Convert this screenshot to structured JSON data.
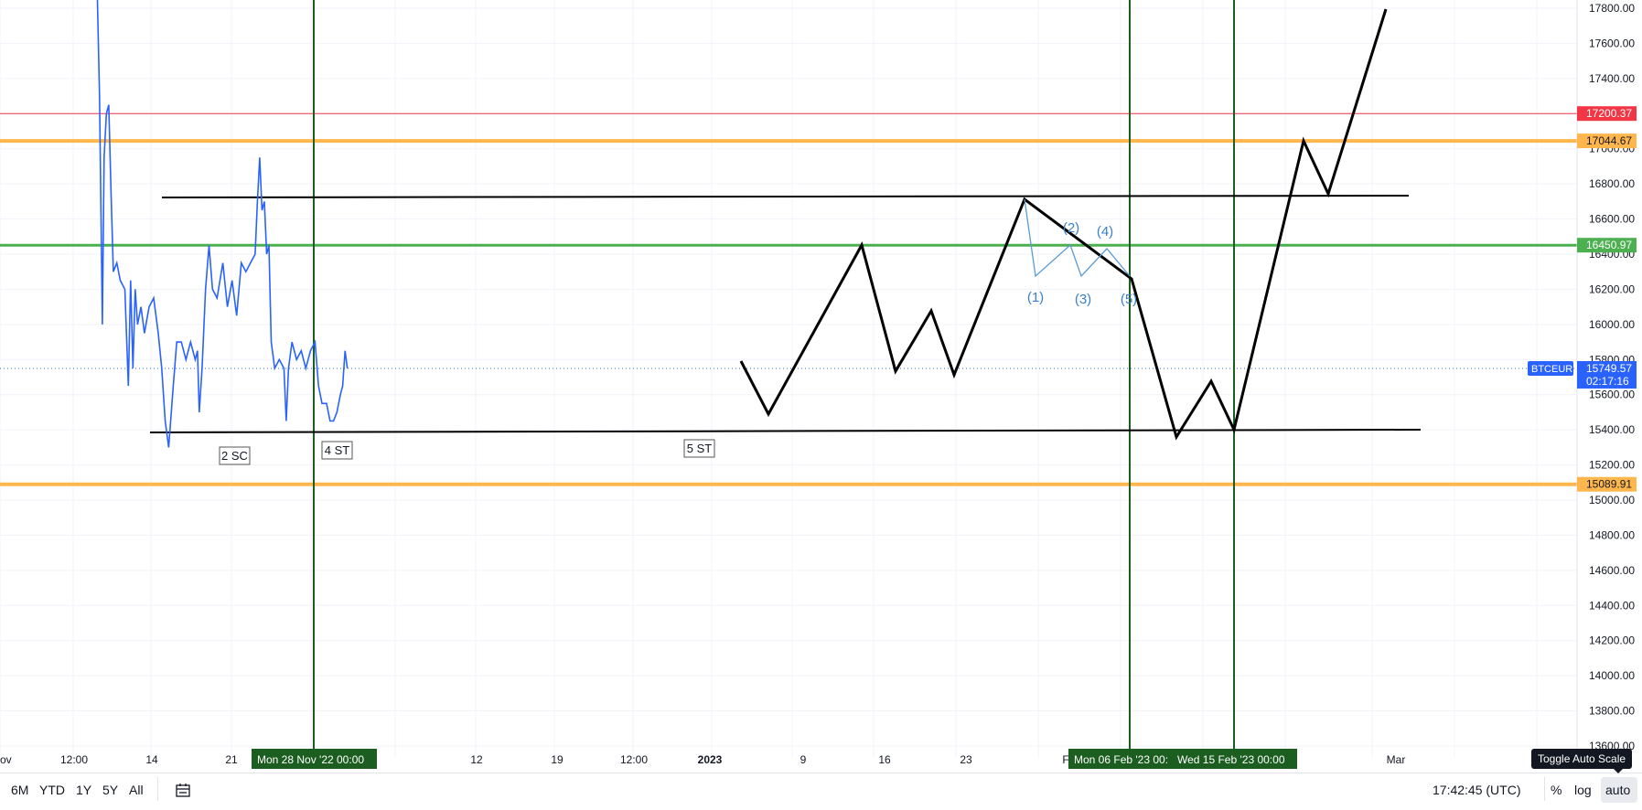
{
  "chart_data": {
    "type": "line",
    "symbol": "BTCEUR",
    "ylim": [
      13600,
      17800
    ],
    "y_ticks": [
      13600,
      13800,
      14000,
      14200,
      14400,
      14600,
      14800,
      15000,
      15200,
      15400,
      15600,
      15800,
      16000,
      16200,
      16400,
      16600,
      16800,
      17000,
      17200,
      17400,
      17600,
      17800
    ],
    "x_tick_labels": [
      "ov",
      "12:00",
      "14",
      "21",
      "12",
      "19",
      "12:00",
      "2023",
      "9",
      "16",
      "23",
      "F",
      "Mar"
    ],
    "series": [
      {
        "color": "#2962ff",
        "points": [
          [
            0.0,
            18200
          ],
          [
            0.3,
            17300
          ],
          [
            0.55,
            16000
          ],
          [
            0.7,
            16950
          ],
          [
            0.9,
            17200
          ],
          [
            1.1,
            17250
          ],
          [
            1.3,
            16750
          ],
          [
            1.5,
            16300
          ],
          [
            1.8,
            16350
          ],
          [
            2.1,
            16250
          ],
          [
            2.5,
            16200
          ],
          [
            2.8,
            15650
          ],
          [
            3.0,
            16250
          ],
          [
            3.2,
            15750
          ],
          [
            3.4,
            16200
          ],
          [
            3.6,
            16000
          ],
          [
            3.9,
            16100
          ],
          [
            4.2,
            15950
          ],
          [
            4.6,
            16100
          ],
          [
            5.0,
            16150
          ],
          [
            5.4,
            15950
          ],
          [
            5.7,
            15750
          ],
          [
            6.0,
            15450
          ],
          [
            6.3,
            15300
          ],
          [
            6.7,
            15650
          ],
          [
            7.0,
            15900
          ],
          [
            7.4,
            15900
          ],
          [
            7.8,
            15800
          ],
          [
            8.2,
            15900
          ],
          [
            8.6,
            15800
          ],
          [
            8.8,
            15850
          ],
          [
            8.95,
            15500
          ],
          [
            9.2,
            15750
          ],
          [
            9.5,
            16200
          ],
          [
            9.8,
            16450
          ],
          [
            10.1,
            16200
          ],
          [
            10.5,
            16150
          ],
          [
            11.0,
            16350
          ],
          [
            11.4,
            16100
          ],
          [
            11.8,
            16250
          ],
          [
            12.2,
            16050
          ],
          [
            12.6,
            16350
          ],
          [
            13.0,
            16300
          ],
          [
            13.4,
            16350
          ],
          [
            13.8,
            16400
          ],
          [
            14.0,
            16700
          ],
          [
            14.2,
            16950
          ],
          [
            14.4,
            16650
          ],
          [
            14.6,
            16700
          ],
          [
            14.8,
            16400
          ],
          [
            15.0,
            16450
          ],
          [
            15.2,
            15900
          ],
          [
            15.5,
            15750
          ],
          [
            15.9,
            15800
          ],
          [
            16.3,
            15750
          ],
          [
            16.5,
            15450
          ],
          [
            16.7,
            15750
          ],
          [
            17.0,
            15900
          ],
          [
            17.4,
            15800
          ],
          [
            17.8,
            15850
          ],
          [
            18.2,
            15750
          ],
          [
            18.6,
            15850
          ],
          [
            19.0,
            15900
          ],
          [
            19.3,
            15650
          ],
          [
            19.6,
            15550
          ],
          [
            20.0,
            15550
          ],
          [
            20.3,
            15450
          ],
          [
            20.6,
            15450
          ],
          [
            20.9,
            15500
          ],
          [
            21.2,
            15600
          ],
          [
            21.4,
            15650
          ],
          [
            21.6,
            15850
          ],
          [
            21.8,
            15750
          ]
        ]
      }
    ]
  },
  "price_labels": [
    {
      "text": "17200.37",
      "value": 17200.37,
      "color": "#f23645"
    },
    {
      "text": "17044.67",
      "value": 17044.67,
      "color": "#ffb74d"
    },
    {
      "text": "16450.97",
      "value": 16450.97,
      "color": "#4caf50"
    },
    {
      "text": "15089.91",
      "value": 15089.91,
      "color": "#ffb74d"
    }
  ],
  "last_price": {
    "symbol": "BTCEUR",
    "price": "15749.57",
    "value": 15749.57,
    "countdown": "02:17:16",
    "color": "#2962ff"
  },
  "time_labels": [
    "Mon 28 Nov '22   00:00",
    "Mon 06 Feb '23   00:",
    "Wed 15 Feb '23   00:00"
  ],
  "annotations": {
    "boxes": [
      "2 SC",
      "4 ST",
      "5 ST"
    ],
    "waves": [
      "(1)",
      "(2)",
      "(3)",
      "(4)",
      "(5)"
    ]
  },
  "bottom_bar": {
    "ranges": [
      "6M",
      "YTD",
      "1Y",
      "5Y",
      "All"
    ],
    "clock": "17:42:45 (UTC)",
    "percent": "%",
    "log": "log",
    "auto": "auto",
    "tooltip": "Toggle Auto Scale",
    "compare_icon": "date-range-icon"
  }
}
